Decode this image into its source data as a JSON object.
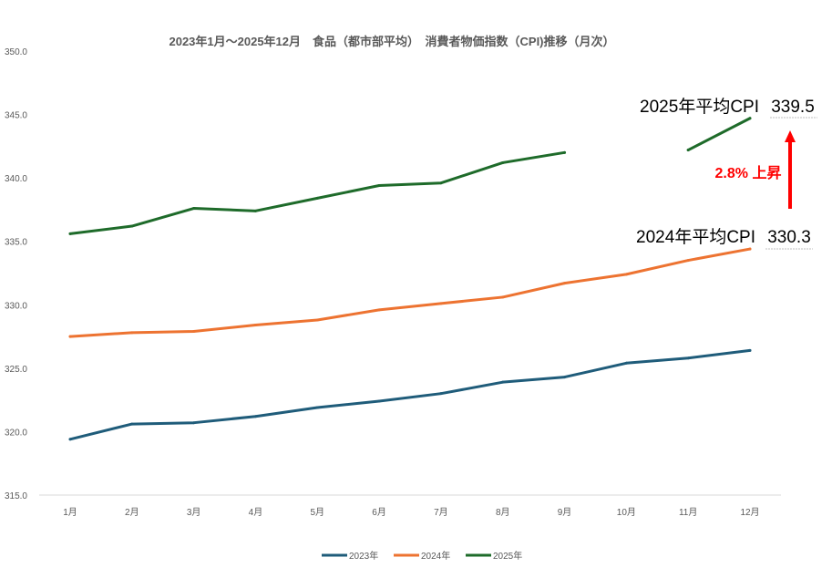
{
  "chart_data": {
    "type": "line",
    "title": "2023年1月～2025年12月　食品（都市部平均）　消費者物価指数（CPI)推移（月次）",
    "xlabel": "",
    "ylabel": "",
    "categories": [
      "1月",
      "2月",
      "3月",
      "4月",
      "5月",
      "6月",
      "7月",
      "8月",
      "9月",
      "10月",
      "11月",
      "12月"
    ],
    "ylim": [
      315.0,
      350.0
    ],
    "yticks": [
      "315.0",
      "320.0",
      "325.0",
      "330.0",
      "335.0",
      "340.0",
      "345.0",
      "350.0"
    ],
    "grid": false,
    "legend_position": "bottom",
    "series": [
      {
        "name": "2023年",
        "color": "#1f5c7a",
        "values": [
          319.4,
          320.6,
          320.7,
          321.2,
          321.9,
          322.4,
          323.0,
          323.9,
          324.3,
          325.4,
          325.8,
          326.4
        ]
      },
      {
        "name": "2024年",
        "color": "#ed7331",
        "values": [
          327.5,
          327.8,
          327.9,
          328.4,
          328.8,
          329.6,
          330.1,
          330.6,
          331.7,
          332.4,
          333.5,
          334.4
        ]
      },
      {
        "name": "2025年",
        "color": "#1e6b2a",
        "values": [
          335.6,
          336.2,
          337.6,
          337.4,
          338.4,
          339.4,
          339.6,
          341.2,
          342.0,
          null,
          342.2,
          344.7
        ]
      }
    ],
    "annotations": {
      "avg2025_label": "2025年平均CPI",
      "avg2025_value": "339.5",
      "avg2024_label": "2024年平均CPI",
      "avg2024_value": "330.3",
      "rise_label": "2.8% 上昇",
      "arrow_color": "#ff0000"
    }
  }
}
